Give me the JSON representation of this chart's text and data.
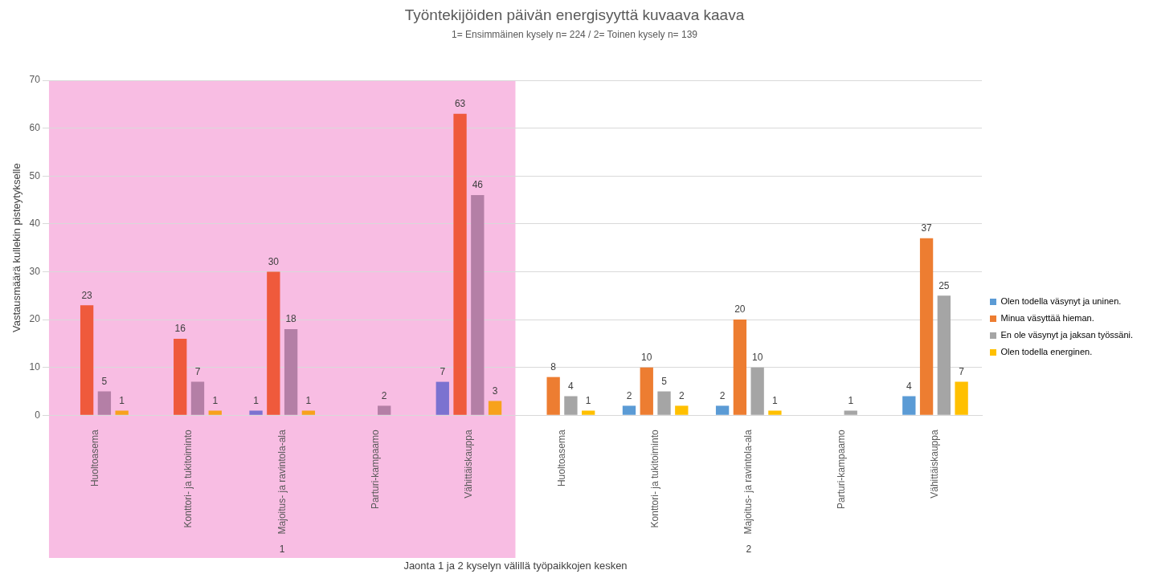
{
  "chart_data": {
    "type": "bar",
    "title": "Työntekijöiden päivän energisyyttä kuvaava kaava",
    "subtitle": "1= Ensimmäinen kysely n= 224 / 2= Toinen kysely n= 139",
    "xlabel": "Jaonta 1 ja 2 kyselyn välillä työpaikkojen kesken",
    "ylabel": "Vastausmäärä kullekin pisteytykselle",
    "categories": [
      "Huoltoasema",
      "Konttori- ja tukitoiminto",
      "Majoitus- ja ravintola-ala",
      "Parturi-kampaamo",
      "Vähittäiskauppa",
      "Huoltoasema",
      "Konttori- ja tukitoiminto",
      "Majoitus- ja ravintola-ala",
      "Parturi-kampaamo",
      "Vähittäiskauppa"
    ],
    "series": [
      {
        "name": "Olen todella väsynyt ja uninen.",
        "color": "#5b9bd5",
        "colors": [
          "#7b72d0",
          "#7b72d0",
          "#7b72d0",
          "#7b72d0",
          "#7b72d0",
          "#5b9bd5",
          "#5b9bd5",
          "#5b9bd5",
          "#5b9bd5",
          "#5b9bd5"
        ],
        "values": [
          null,
          null,
          1,
          null,
          7,
          null,
          2,
          2,
          null,
          4
        ]
      },
      {
        "name": "Minua väsyttää hieman.",
        "color": "#ed7d31",
        "colors": [
          "#ef5a3c",
          "#ef5a3c",
          "#ef5a3c",
          "#ef5a3c",
          "#ef5a3c",
          "#ed7d31",
          "#ed7d31",
          "#ed7d31",
          "#ed7d31",
          "#ed7d31"
        ],
        "values": [
          23,
          16,
          30,
          null,
          63,
          8,
          10,
          20,
          null,
          37
        ]
      },
      {
        "name": "En ole väsynyt ja jaksan työssäni.",
        "color": "#a5a5a5",
        "colors": [
          "#b47fa6",
          "#b47fa6",
          "#b47fa6",
          "#b47fa6",
          "#b47fa6",
          "#a5a5a5",
          "#a5a5a5",
          "#a5a5a5",
          "#a5a5a5",
          "#a5a5a5"
        ],
        "values": [
          5,
          7,
          18,
          2,
          46,
          4,
          5,
          10,
          1,
          25
        ]
      },
      {
        "name": "Olen todella energinen.",
        "color": "#ffc000",
        "colors": [
          "#f7a21c",
          "#f7a21c",
          "#f7a21c",
          "#f7a21c",
          "#f7a21c",
          "#ffc000",
          "#ffc000",
          "#ffc000",
          "#ffc000",
          "#ffc000"
        ],
        "values": [
          1,
          1,
          1,
          null,
          3,
          1,
          2,
          1,
          null,
          7
        ]
      }
    ],
    "ylim": [
      0,
      70
    ],
    "yticks": [
      0,
      10,
      20,
      30,
      40,
      50,
      60,
      70
    ],
    "grid": "y",
    "legend": "right",
    "data_labels": true,
    "bands": [
      {
        "axis": "x",
        "from": "Huoltoasema",
        "to": "Vähittäiskauppa",
        "color": "#f8bde3"
      }
    ],
    "annotations": [
      "1",
      "2"
    ]
  }
}
